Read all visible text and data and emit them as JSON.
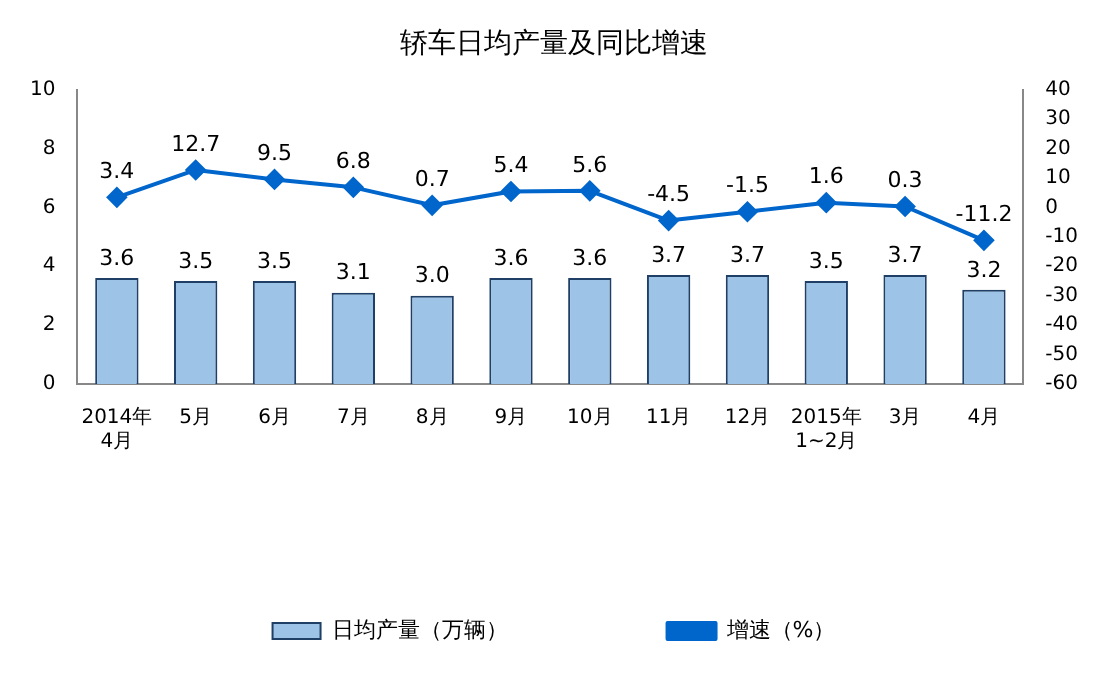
{
  "chart_data": {
    "type": "bar",
    "title": "轿车日均产量及同比增速",
    "categories": [
      "2014年\n4月",
      "5月",
      "6月",
      "7月",
      "8月",
      "9月",
      "10月",
      "11月",
      "12月",
      "2015年\n1~2月",
      "3月",
      "4月"
    ],
    "series": [
      {
        "name": "日均产量（万辆）",
        "color": "#9dc3e6",
        "values": [
          3.6,
          3.5,
          3.5,
          3.1,
          3.0,
          3.6,
          3.6,
          3.7,
          3.7,
          3.5,
          3.7,
          3.2
        ],
        "value_labels": [
          "3.6",
          "3.5",
          "3.5",
          "3.1",
          "3.0",
          "3.6",
          "3.6",
          "3.7",
          "3.7",
          "3.5",
          "3.7",
          "3.2"
        ]
      },
      {
        "name": "增速（%）",
        "type": "line",
        "axis": "y2",
        "color": "#0066cc",
        "values": [
          3.4,
          12.7,
          9.5,
          6.8,
          0.7,
          5.4,
          5.6,
          -4.5,
          -1.5,
          1.6,
          0.3,
          -11.2
        ],
        "value_labels": [
          "3.4",
          "12.7",
          "9.5",
          "6.8",
          "0.7",
          "5.4",
          "5.6",
          "-4.5",
          "-1.5",
          "1.6",
          "0.3",
          "-11.2"
        ]
      }
    ],
    "ylim": [
      0,
      10
    ],
    "yticks": [
      0,
      2,
      4,
      6,
      8,
      10
    ],
    "y2lim": [
      -60,
      40
    ],
    "y2ticks": [
      -60,
      -50,
      -40,
      -30,
      -20,
      -10,
      0,
      10,
      20,
      30,
      40
    ],
    "grid": false,
    "legend": "bottom",
    "marker": "diamond",
    "line_style": "solid"
  }
}
